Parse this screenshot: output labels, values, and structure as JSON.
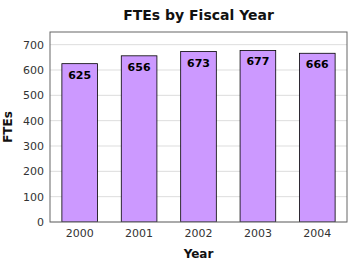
{
  "chart_data": {
    "type": "bar",
    "title": "FTEs by Fiscal Year",
    "categories": [
      "2000",
      "2001",
      "2002",
      "2003",
      "2004"
    ],
    "values": [
      625,
      656,
      673,
      677,
      666
    ],
    "color": "#CC99FF",
    "xlabel": "Year",
    "ylabel": "FTEs",
    "ylim": [
      0,
      750
    ],
    "yticks": [
      0,
      100,
      200,
      300,
      400,
      500,
      600,
      700
    ],
    "grid": true,
    "data_labels": true
  }
}
